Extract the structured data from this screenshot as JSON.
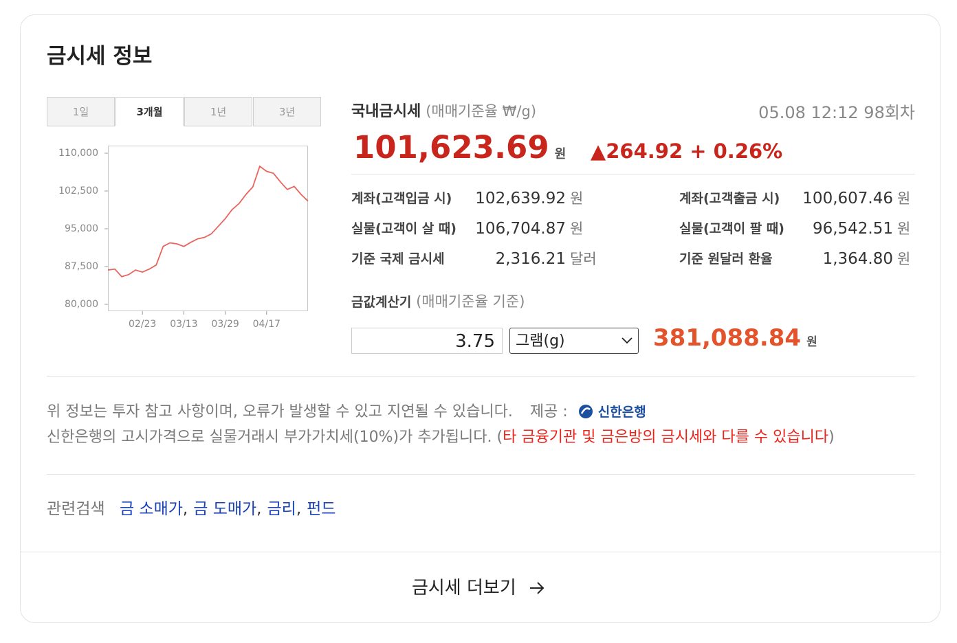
{
  "header": {
    "title": "금시세 정보"
  },
  "tabs": [
    "1일",
    "3개월",
    "1년",
    "3년"
  ],
  "active_tab": 1,
  "chart_data": {
    "type": "line",
    "categories": [
      null,
      null,
      null,
      null,
      null,
      "02/23",
      null,
      null,
      null,
      null,
      null,
      "03/13",
      null,
      null,
      null,
      null,
      null,
      "03/29",
      null,
      null,
      null,
      null,
      null,
      "04/17",
      null,
      null,
      null,
      null,
      null,
      null
    ],
    "values": [
      86800,
      87000,
      85500,
      85900,
      86800,
      86400,
      87000,
      87800,
      91500,
      92200,
      92000,
      91500,
      92300,
      93000,
      93300,
      94000,
      95500,
      97000,
      98800,
      100000,
      101800,
      103300,
      107400,
      106400,
      106000,
      104300,
      102800,
      103400,
      101800,
      100500
    ],
    "color": "#e8645c",
    "ylim": [
      80000,
      110000
    ],
    "yticks": [
      {
        "value": 80000,
        "label": "80,000"
      },
      {
        "value": 87500,
        "label": "87,500"
      },
      {
        "value": 95000,
        "label": "95,000"
      },
      {
        "value": 102500,
        "label": "102,500"
      },
      {
        "value": 110000,
        "label": "110,000"
      }
    ],
    "grid": false
  },
  "domestic": {
    "title": "국내금시세",
    "subtitle": "(매매기준율 ₩/g)",
    "timestamp": "05.08 12:12 98회차",
    "price": "101,623.69",
    "unit": "원",
    "change": "▲264.92 + 0.26%"
  },
  "rows": [
    {
      "label": "계좌(고객입금 시)",
      "value": "102,639.92",
      "unit": "원"
    },
    {
      "label": "계좌(고객출금 시)",
      "value": "100,607.46",
      "unit": "원"
    },
    {
      "label": "실물(고객이 살 때)",
      "value": "106,704.87",
      "unit": "원"
    },
    {
      "label": "실물(고객이 팔 때)",
      "value": "96,542.51",
      "unit": "원"
    },
    {
      "label": "기준 국제 금시세",
      "value": "2,316.21",
      "unit": "달러"
    },
    {
      "label": "기준 원달러 환율",
      "value": "1,364.80",
      "unit": "원"
    }
  ],
  "calculator": {
    "title": "금값계산기",
    "subtitle": "(매매기준율 기준)",
    "input": "3.75",
    "select": "그램(g)",
    "result": "381,088.84",
    "unit": "원"
  },
  "notes": {
    "line1": "위 정보는 투자 참고 사항이며, 오류가 발생할 수 있고 지연될 수 있습니다.",
    "provider_label": "제공 :",
    "provider": "신한은행",
    "line2": "신한은행의 고시가격으로 실물거래시 부가가치세(10%)가 추가됩니다. (",
    "warning": "타 금융기관 및 금은방의 금시세와 다를 수 있습니다",
    "line2_end": ")"
  },
  "related": {
    "label": "관련검색",
    "links": [
      "금 소매가",
      "금 도매가",
      "금리",
      "펀드"
    ],
    "separator": ","
  },
  "more": "금시세 더보기"
}
